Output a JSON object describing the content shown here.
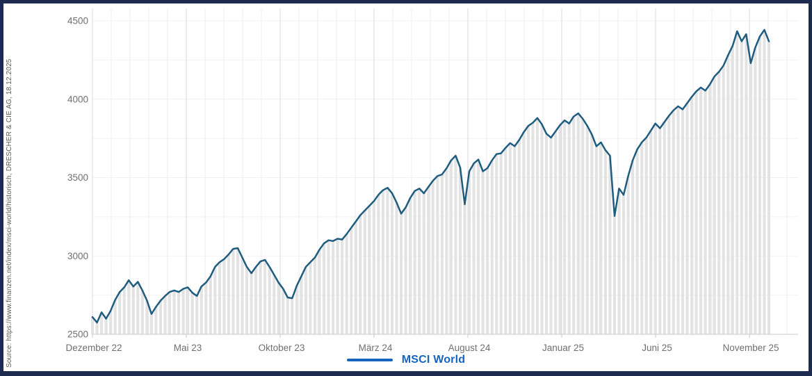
{
  "source_note": "Source: https://www.finanzen.net/index/msci-world/historisch, DRESCHER & CIE AG, 18.12.2025",
  "legend": {
    "label": "MSCI World",
    "color": "#1565c0"
  },
  "colors": {
    "line": "#1e5c80",
    "bar": "#e3e3e3",
    "grid_minor": "#ececec",
    "grid_major": "#d9d9d9",
    "grid_h": "#f2f2f2",
    "axis_line": "#c9c9c9",
    "axis_text": "#6f6f6f",
    "frame_border": "#1d2b50",
    "source_text": "#5b5b5b"
  },
  "chart_data": {
    "type": "line",
    "title": "",
    "xlabel": "",
    "ylabel": "",
    "grid": true,
    "legend_position": "bottom",
    "y_ticks": [
      2500,
      3000,
      3500,
      4000,
      4500
    ],
    "ylim": [
      2500,
      4580
    ],
    "baseline": 2500,
    "months_total": 37,
    "x_ticks": [
      {
        "label": "Dezember 22",
        "month": 0
      },
      {
        "label": "Mai 23",
        "month": 5
      },
      {
        "label": "Oktober 23",
        "month": 10
      },
      {
        "label": "März 24",
        "month": 15
      },
      {
        "label": "August 24",
        "month": 20
      },
      {
        "label": "Januar 25",
        "month": 25
      },
      {
        "label": "Juni 25",
        "month": 30
      },
      {
        "label": "November 25",
        "month": 35
      }
    ],
    "series": [
      {
        "name": "MSCI World",
        "sampling": "weekly, Dezember 2022 – 18.12.2025",
        "values": [
          2610,
          2575,
          2640,
          2600,
          2650,
          2720,
          2770,
          2800,
          2845,
          2805,
          2835,
          2780,
          2715,
          2630,
          2675,
          2715,
          2745,
          2770,
          2780,
          2770,
          2790,
          2800,
          2765,
          2745,
          2805,
          2830,
          2870,
          2930,
          2960,
          2980,
          3010,
          3045,
          3050,
          2990,
          2930,
          2890,
          2930,
          2965,
          2975,
          2930,
          2880,
          2830,
          2790,
          2735,
          2730,
          2810,
          2870,
          2930,
          2960,
          2990,
          3040,
          3080,
          3100,
          3095,
          3110,
          3105,
          3140,
          3180,
          3220,
          3260,
          3290,
          3320,
          3350,
          3390,
          3420,
          3435,
          3400,
          3340,
          3270,
          3310,
          3370,
          3415,
          3430,
          3400,
          3440,
          3480,
          3510,
          3520,
          3560,
          3610,
          3640,
          3565,
          3330,
          3540,
          3590,
          3615,
          3540,
          3560,
          3610,
          3650,
          3655,
          3690,
          3720,
          3700,
          3740,
          3790,
          3830,
          3850,
          3880,
          3840,
          3780,
          3755,
          3795,
          3835,
          3865,
          3845,
          3890,
          3910,
          3875,
          3830,
          3775,
          3700,
          3725,
          3675,
          3640,
          3255,
          3430,
          3390,
          3510,
          3610,
          3680,
          3725,
          3755,
          3800,
          3845,
          3815,
          3855,
          3895,
          3930,
          3955,
          3935,
          3975,
          4015,
          4050,
          4075,
          4055,
          4095,
          4145,
          4175,
          4215,
          4280,
          4340,
          4434,
          4370,
          4415,
          4230,
          4330,
          4400,
          4443,
          4370
        ]
      }
    ]
  }
}
